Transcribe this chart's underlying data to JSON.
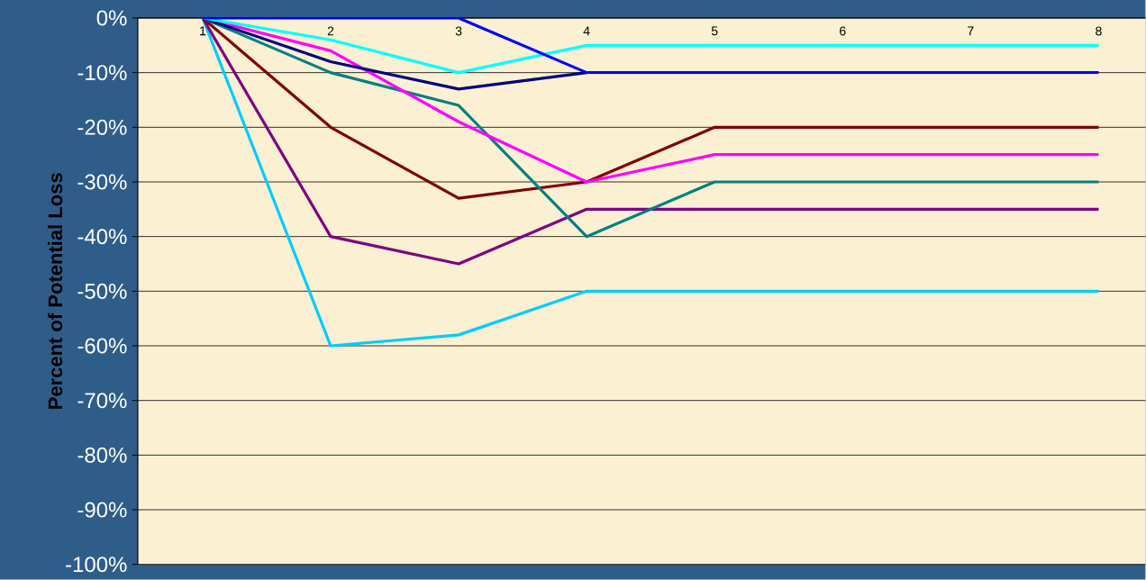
{
  "chart_data": {
    "type": "line",
    "ylabel": "Percent of Potential Loss",
    "categories": [
      "1",
      "2",
      "3",
      "4",
      "5",
      "6",
      "7",
      "8"
    ],
    "ylim": [
      -100,
      0
    ],
    "yticks": [
      {
        "value": -100,
        "label": "-100%"
      },
      {
        "value": -90,
        "label": "-90%"
      },
      {
        "value": -80,
        "label": "-80%"
      },
      {
        "value": -70,
        "label": "-70%"
      },
      {
        "value": -60,
        "label": "-60%"
      },
      {
        "value": -50,
        "label": "-50%"
      },
      {
        "value": -40,
        "label": "-40%"
      },
      {
        "value": -30,
        "label": "-30%"
      },
      {
        "value": -20,
        "label": "-20%"
      },
      {
        "value": -10,
        "label": "-10%"
      },
      {
        "value": 0,
        "label": "0%"
      }
    ],
    "grid": "y",
    "marker": "none",
    "line_style": "solid",
    "series": [
      {
        "color": "#00ccff",
        "values": [
          0,
          -60,
          -58,
          -50,
          -50,
          -50,
          -50,
          -50
        ]
      },
      {
        "color": "#800080",
        "values": [
          0,
          -40,
          -45,
          -35,
          -35,
          -35,
          -35,
          -35
        ]
      },
      {
        "color": "#800000",
        "values": [
          0,
          -20,
          -33,
          -30,
          -20,
          -20,
          -20,
          -20
        ]
      },
      {
        "color": "#008080",
        "values": [
          0,
          -10,
          -16,
          -40,
          -30,
          -30,
          -30,
          -30
        ]
      },
      {
        "color": "#ff00ff",
        "values": [
          0,
          -6,
          -19,
          -30,
          -25,
          -25,
          -25,
          -25
        ]
      },
      {
        "color": "#000080",
        "values": [
          0,
          -8,
          -13,
          -10,
          null,
          null,
          null,
          null
        ]
      },
      {
        "color": "#00ffff",
        "values": [
          0,
          -4,
          -10,
          -5,
          -5,
          -5,
          -5,
          -5
        ]
      },
      {
        "color": "#0000ff",
        "values": [
          0,
          0,
          0,
          -10,
          -10,
          -10,
          -10,
          -10
        ]
      }
    ]
  }
}
